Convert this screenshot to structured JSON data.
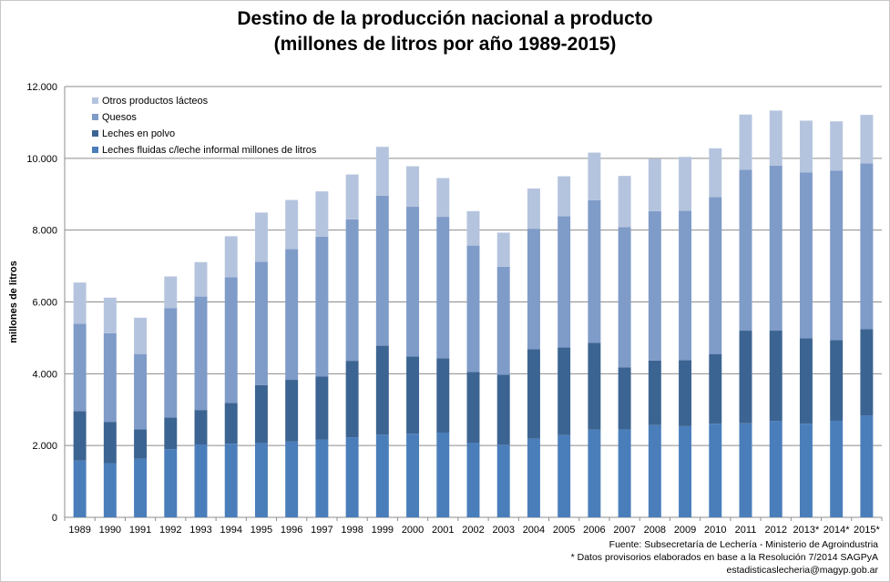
{
  "chart_data": {
    "type": "bar",
    "stacked": true,
    "title": "Destino de la producción nacional a producto",
    "subtitle": "(millones de litros por año 1989-2015)",
    "ylabel": "millones de litros",
    "xlabel": "",
    "ylim": [
      0,
      12000
    ],
    "yticks": [
      "0",
      "2.000",
      "4.000",
      "6.000",
      "8.000",
      "10.000",
      "12.000"
    ],
    "ytick_values": [
      0,
      2000,
      4000,
      6000,
      8000,
      10000,
      12000
    ],
    "grid": true,
    "legend_position": "top-left",
    "categories": [
      "1989",
      "1990",
      "1991",
      "1992",
      "1993",
      "1994",
      "1995",
      "1996",
      "1997",
      "1998",
      "1999",
      "2000",
      "2001",
      "2002",
      "2003",
      "2004",
      "2005",
      "2006",
      "2007",
      "2008",
      "2009",
      "2010",
      "2011",
      "2012",
      "2013*",
      "2014*",
      "2015*"
    ],
    "series": [
      {
        "name": "Leches fluidas c/leche informal millones de litros",
        "color": "#4a7ebb",
        "values": [
          1580,
          1510,
          1630,
          1900,
          2030,
          2050,
          2070,
          2110,
          2160,
          2230,
          2300,
          2330,
          2360,
          2080,
          2020,
          2190,
          2290,
          2440,
          2450,
          2570,
          2540,
          2610,
          2620,
          2680,
          2610,
          2690,
          2840
        ]
      },
      {
        "name": "Leches en polvo",
        "color": "#3c6492",
        "values": [
          1380,
          1150,
          820,
          880,
          960,
          1140,
          1610,
          1720,
          1760,
          2130,
          2480,
          2150,
          2070,
          1970,
          1950,
          2490,
          2440,
          2420,
          1730,
          1800,
          1840,
          1940,
          2580,
          2520,
          2380,
          2250,
          2400
        ]
      },
      {
        "name": "Quesos",
        "color": "#7f9bc8",
        "values": [
          2430,
          2470,
          2100,
          3050,
          3160,
          3500,
          3440,
          3640,
          3900,
          3940,
          4180,
          4170,
          3940,
          3520,
          3010,
          3360,
          3660,
          3970,
          3900,
          4160,
          4160,
          4370,
          4480,
          4600,
          4620,
          4720,
          4620
        ]
      },
      {
        "name": "Otros productos lácteos",
        "color": "#b5c4de",
        "values": [
          1150,
          990,
          1010,
          880,
          960,
          1140,
          1370,
          1370,
          1260,
          1250,
          1360,
          1130,
          1080,
          960,
          950,
          1120,
          1110,
          1330,
          1430,
          1460,
          1500,
          1360,
          1540,
          1530,
          1440,
          1370,
          1350
        ]
      }
    ]
  },
  "footer": {
    "source": "Fuente: Subsecretaría de Lechería - Ministerio de Agroindustria",
    "note": "* Datos provisorios elaborados en base a la Resolución 7/2014 SAGPyA",
    "contact": "estadisticaslecheria@magyp.gob.ar"
  }
}
